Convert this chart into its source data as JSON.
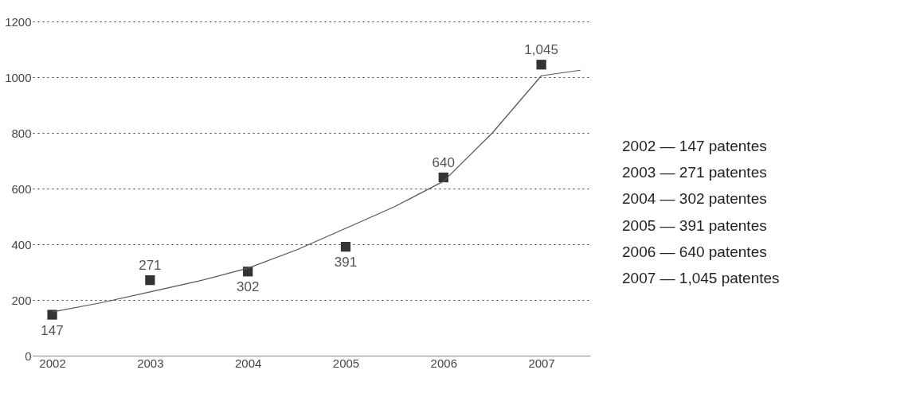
{
  "chart_data": {
    "type": "scatter",
    "x": [
      2002,
      2003,
      2004,
      2005,
      2006,
      2007
    ],
    "series": [
      {
        "color": "#333333",
        "values": [
          147,
          271,
          302,
          391,
          640,
          1045
        ],
        "value_labels": [
          "147",
          "271",
          "302",
          "391",
          "640",
          "1,045"
        ]
      },
      {
        "type": "line",
        "marker": "none",
        "color": "#555555",
        "x": [
          2002,
          2002.5,
          2003,
          2003.5,
          2004,
          2004.5,
          2005,
          2005.5,
          2006,
          2006.5,
          2007,
          2007.4
        ],
        "values": [
          157,
          190,
          229,
          268,
          314,
          380,
          457,
          535,
          626,
          800,
          1005,
          1025
        ]
      }
    ],
    "marker": "square",
    "grid": "y",
    "xlim": [
      2001.8,
      2007.5
    ],
    "xticks": [
      2002,
      2003,
      2004,
      2005,
      2006,
      2007
    ],
    "ylim": [
      0,
      1200
    ],
    "yticks": [
      0,
      200,
      400,
      600,
      800,
      1000,
      1200
    ],
    "annotations": [
      "2002 — 147 patentes",
      "2003 — 271 patentes",
      "2004 — 302 patentes",
      "2005 — 391 patentes",
      "2006 — 640 patentes",
      "2007 — 1,045 patentes"
    ]
  }
}
